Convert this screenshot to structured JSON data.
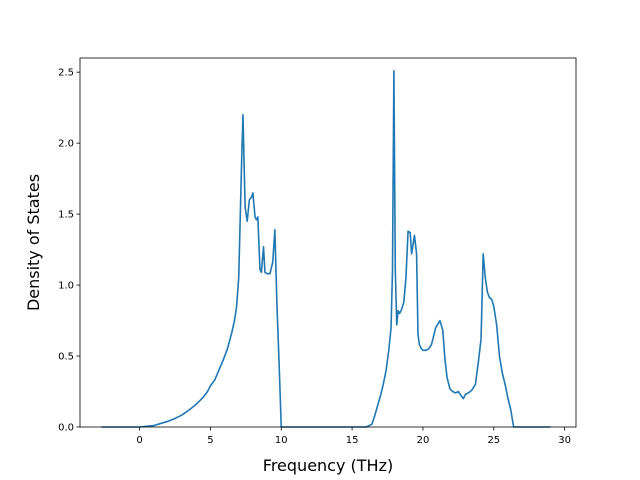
{
  "chart_data": {
    "type": "line",
    "title": "",
    "xlabel": "Frequency (THz)",
    "ylabel": "Density of States",
    "xlim": [
      -4.2,
      30.8
    ],
    "ylim": [
      0,
      2.6
    ],
    "xticks": [
      0,
      5,
      10,
      15,
      20,
      25,
      30
    ],
    "xtick_labels": [
      "0",
      "5",
      "10",
      "15",
      "20",
      "25",
      "30"
    ],
    "yticks": [
      0.0,
      0.5,
      1.0,
      1.5,
      2.0,
      2.5
    ],
    "ytick_labels": [
      "0.0",
      "0.5",
      "1.0",
      "1.5",
      "2.0",
      "2.5"
    ],
    "grid": false,
    "color": "#1f77b4",
    "series": [
      {
        "x": [
          -2.7,
          -2.0,
          -1.0,
          0.0,
          0.5,
          1.0,
          1.5,
          2.0,
          2.5,
          3.0,
          3.5,
          4.0,
          4.5,
          4.8,
          5.0,
          5.3,
          5.6,
          5.9,
          6.2,
          6.5,
          6.7,
          6.85,
          7.0,
          7.1,
          7.2,
          7.3,
          7.45,
          7.6,
          7.75,
          7.9,
          8.0,
          8.15,
          8.25,
          8.35,
          8.5,
          8.6,
          8.75,
          8.85,
          9.0,
          9.2,
          9.4,
          9.55,
          9.7,
          9.85,
          10.0,
          10.2,
          10.5,
          11.0,
          12.0,
          13.0,
          14.0,
          15.0,
          16.0,
          16.4,
          16.6,
          16.8,
          17.0,
          17.2,
          17.4,
          17.6,
          17.75,
          17.85,
          17.95,
          18.05,
          18.15,
          18.25,
          18.35,
          18.5,
          18.65,
          18.8,
          18.95,
          19.1,
          19.2,
          19.4,
          19.55,
          19.65,
          19.75,
          19.9,
          20.0,
          20.2,
          20.4,
          20.6,
          20.9,
          21.2,
          21.4,
          21.55,
          21.7,
          21.9,
          22.1,
          22.3,
          22.5,
          22.7,
          22.85,
          23.0,
          23.2,
          23.45,
          23.7,
          23.9,
          24.1,
          24.25,
          24.4,
          24.55,
          24.7,
          24.85,
          25.0,
          25.2,
          25.4,
          25.6,
          25.8,
          26.0,
          26.2,
          26.4,
          26.55,
          26.7,
          27.0,
          28.0,
          29.0
        ],
        "y": [
          0.0,
          0.0,
          0.0,
          0.0,
          0.005,
          0.01,
          0.025,
          0.04,
          0.06,
          0.085,
          0.12,
          0.16,
          0.21,
          0.25,
          0.29,
          0.33,
          0.4,
          0.47,
          0.55,
          0.66,
          0.75,
          0.85,
          1.05,
          1.45,
          1.85,
          2.2,
          1.55,
          1.45,
          1.6,
          1.62,
          1.65,
          1.48,
          1.46,
          1.48,
          1.11,
          1.09,
          1.27,
          1.09,
          1.08,
          1.08,
          1.16,
          1.39,
          0.85,
          0.45,
          0.0,
          0.0,
          0.0,
          0.0,
          0.0,
          0.0,
          0.0,
          0.0,
          0.0,
          0.02,
          0.08,
          0.15,
          0.22,
          0.3,
          0.4,
          0.55,
          0.7,
          1.1,
          2.51,
          1.1,
          0.72,
          0.82,
          0.8,
          0.83,
          0.88,
          1.05,
          1.38,
          1.37,
          1.22,
          1.35,
          1.22,
          0.65,
          0.58,
          0.55,
          0.54,
          0.54,
          0.55,
          0.58,
          0.7,
          0.75,
          0.68,
          0.48,
          0.35,
          0.27,
          0.25,
          0.24,
          0.25,
          0.22,
          0.2,
          0.23,
          0.24,
          0.26,
          0.3,
          0.45,
          0.62,
          1.22,
          1.05,
          0.95,
          0.91,
          0.9,
          0.85,
          0.72,
          0.5,
          0.38,
          0.3,
          0.2,
          0.12,
          0.0,
          0.0,
          0.0,
          0.0,
          0.0,
          0.0
        ]
      }
    ]
  }
}
